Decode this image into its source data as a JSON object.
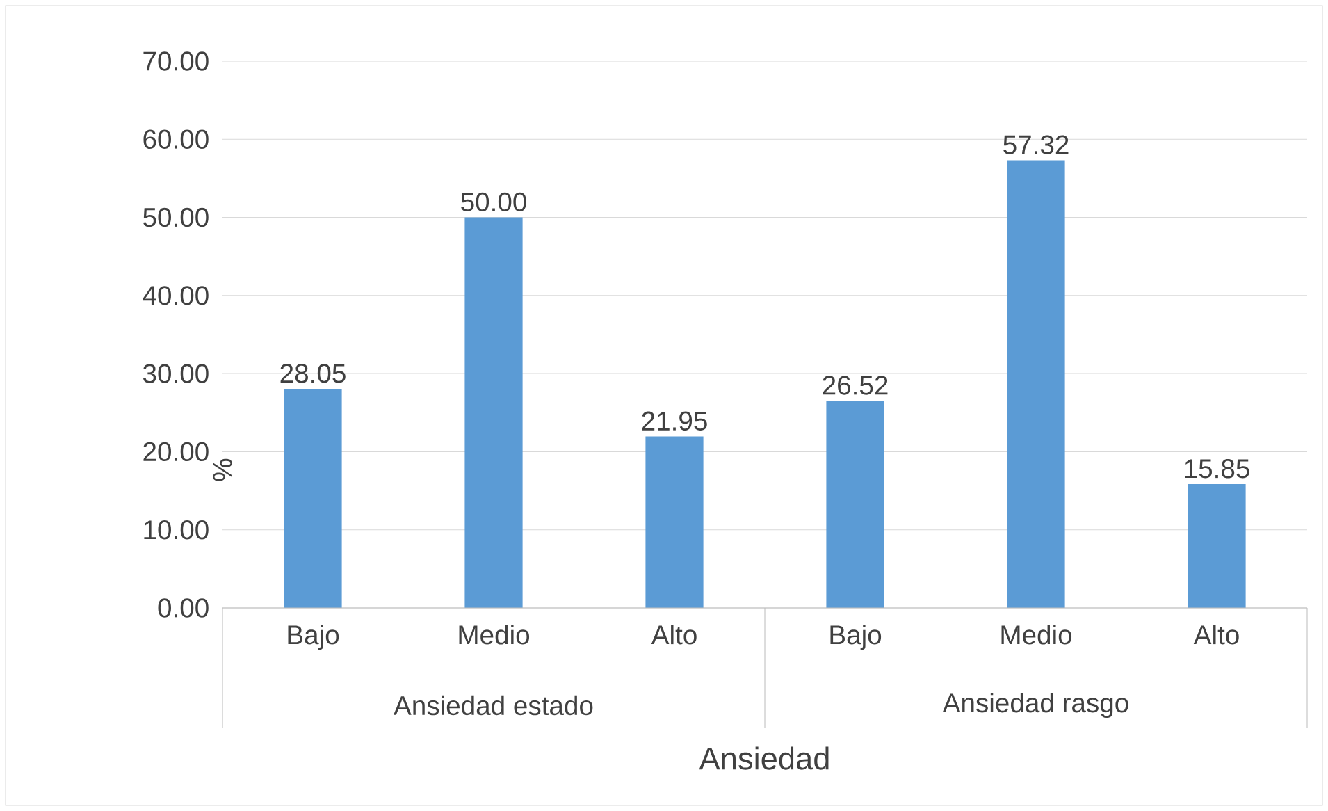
{
  "chart_data": {
    "type": "bar",
    "categories": [
      "Bajo",
      "Medio",
      "Alto",
      "Bajo",
      "Medio",
      "Alto"
    ],
    "values": [
      28.05,
      50.0,
      21.95,
      26.52,
      57.32,
      15.85
    ],
    "value_labels": [
      "28.05",
      "50.00",
      "21.95",
      "26.52",
      "57.32",
      "15.85"
    ],
    "color": "#5b9bd5",
    "ylabel": "%",
    "xlabel": "Ansiedad",
    "annotations": [
      "Ansiedad estado",
      "Ansiedad rasgo"
    ],
    "ylim": [
      0,
      70
    ],
    "yticks": [
      {
        "value": 0,
        "label": "0.00"
      },
      {
        "value": 10,
        "label": "10.00"
      },
      {
        "value": 20,
        "label": "20.00"
      },
      {
        "value": 30,
        "label": "30.00"
      },
      {
        "value": 40,
        "label": "40.00"
      },
      {
        "value": 50,
        "label": "50.00"
      },
      {
        "value": 60,
        "label": "60.00"
      },
      {
        "value": 70,
        "label": "70.00"
      }
    ],
    "grid": true
  }
}
